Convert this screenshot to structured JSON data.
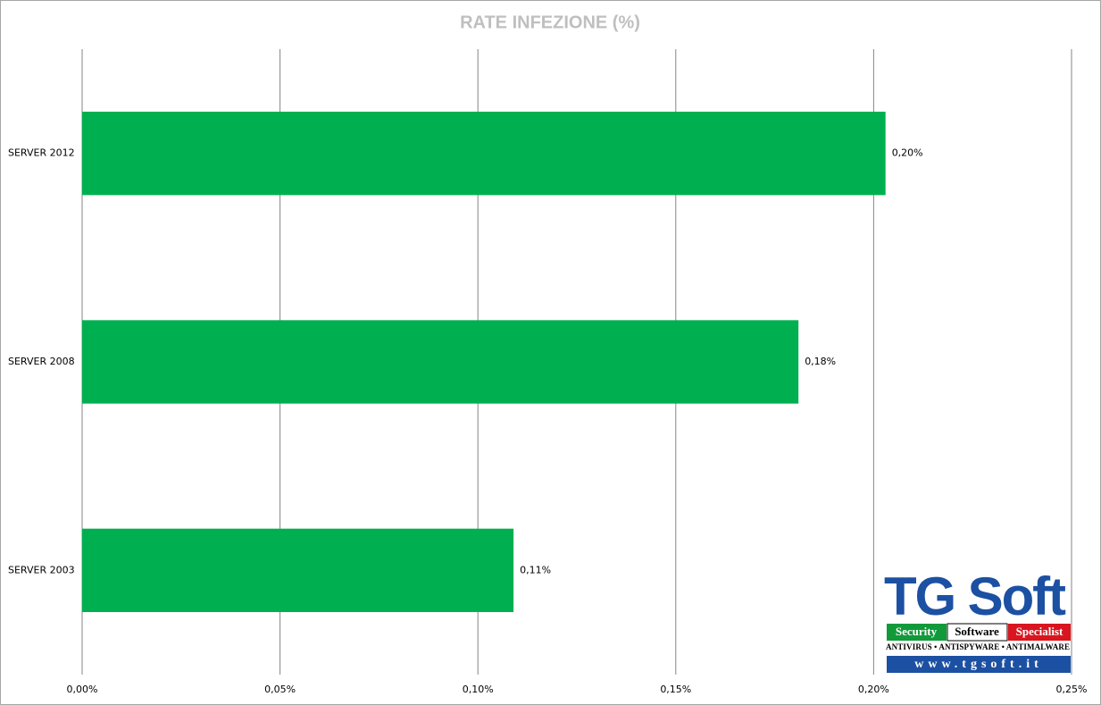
{
  "chart_data": {
    "type": "hbar",
    "title": "RATE INFEZIONE (%)",
    "categories": [
      "SERVER 2012",
      "SERVER 2008",
      "SERVER 2003"
    ],
    "values": [
      0.203,
      0.181,
      0.109
    ],
    "value_labels": [
      "0,20%",
      "0,18%",
      "0,11%"
    ],
    "color": "#00b050",
    "xlim": [
      0,
      0.25
    ],
    "xticks": [
      {
        "value": 0,
        "label": "0,00%"
      },
      {
        "value": 0.05,
        "label": "0,05%"
      },
      {
        "value": 0.1,
        "label": "0,10%"
      },
      {
        "value": 0.15,
        "label": "0,15%"
      },
      {
        "value": 0.2,
        "label": "0,20%"
      },
      {
        "value": 0.25,
        "label": "0,25%"
      }
    ],
    "grid": true
  },
  "logo": {
    "name": "TG Soft",
    "tags": [
      "Security",
      "Software",
      "Specialist"
    ],
    "products": "ANTIVIRUS • ANTISPYWARE • ANTIMALWARE",
    "url": "www.tgsoft.it"
  }
}
